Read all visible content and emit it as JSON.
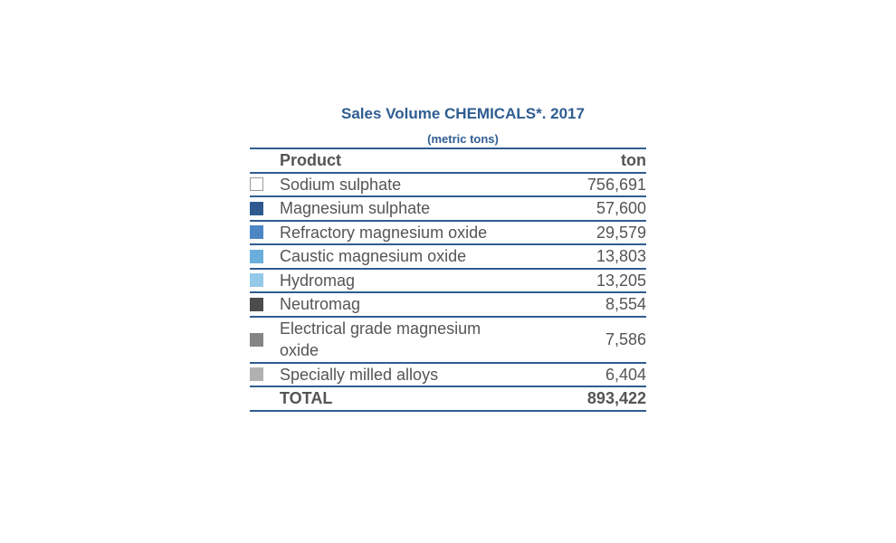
{
  "chart_data": {
    "type": "table",
    "title": "Sales Volume CHEMICALS*. 2017",
    "subtitle": "(metric tons)",
    "columns": [
      "Product",
      "ton"
    ],
    "rows": [
      {
        "product": "Sodium sulphate",
        "value": "756,691",
        "color": "#ffffff"
      },
      {
        "product": "Magnesium sulphate",
        "value": "57,600",
        "color": "#2f5a90"
      },
      {
        "product": "Refractory magnesium oxide",
        "value": "29,579",
        "color": "#4d86c4"
      },
      {
        "product": "Caustic magnesium oxide",
        "value": "13,803",
        "color": "#6aaedb"
      },
      {
        "product": "Hydromag",
        "value": "13,205",
        "color": "#95c9ea"
      },
      {
        "product": "Neutromag",
        "value": "8,554",
        "color": "#4c4c4c"
      },
      {
        "product": "Electrical grade magnesium oxide",
        "value": "7,586",
        "color": "#858585"
      },
      {
        "product": "Specially milled alloys",
        "value": "6,404",
        "color": "#b1b1b1"
      }
    ],
    "total": {
      "label": "TOTAL",
      "value": "893,422"
    }
  }
}
